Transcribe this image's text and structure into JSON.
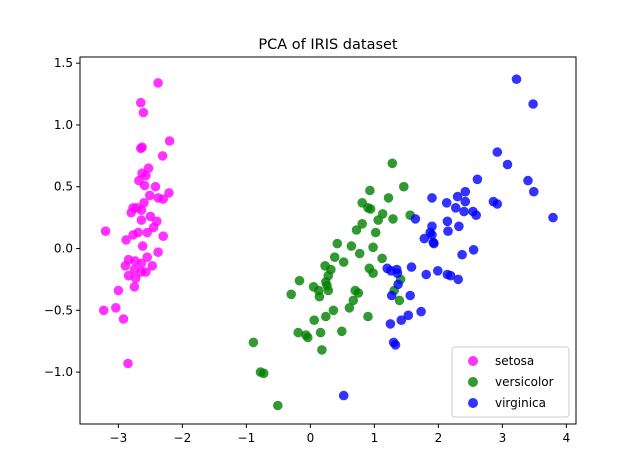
{
  "chart_data": {
    "type": "scatter",
    "title": "PCA of IRIS dataset",
    "xlabel": "",
    "ylabel": "",
    "xlim": [
      -3.6,
      4.15
    ],
    "ylim": [
      -1.42,
      1.55
    ],
    "xticks": [
      -3,
      -2,
      -1,
      0,
      1,
      2,
      3,
      4
    ],
    "xtick_labels": [
      "−3",
      "−2",
      "−1",
      "0",
      "1",
      "2",
      "3",
      "4"
    ],
    "yticks": [
      -1.0,
      -0.5,
      0.0,
      0.5,
      1.0,
      1.5
    ],
    "ytick_labels": [
      "−1.0",
      "−0.5",
      "0.0",
      "0.5",
      "1.0",
      "1.5"
    ],
    "grid": false,
    "legend_position": "lower-right",
    "marker_alpha": 0.8,
    "series": [
      {
        "name": "setosa",
        "color": "#ff00ff",
        "points": [
          [
            -2.38,
            1.34
          ],
          [
            -2.65,
            1.18
          ],
          [
            -2.61,
            1.1
          ],
          [
            -2.2,
            0.87
          ],
          [
            -2.63,
            0.82
          ],
          [
            -2.65,
            0.81
          ],
          [
            -2.31,
            0.75
          ],
          [
            -2.53,
            0.65
          ],
          [
            -2.63,
            0.61
          ],
          [
            -2.57,
            0.59
          ],
          [
            -2.68,
            0.55
          ],
          [
            -2.59,
            0.51
          ],
          [
            -2.42,
            0.5
          ],
          [
            -2.21,
            0.45
          ],
          [
            -2.51,
            0.43
          ],
          [
            -2.38,
            0.41
          ],
          [
            -2.3,
            0.4
          ],
          [
            -2.6,
            0.37
          ],
          [
            -2.77,
            0.33
          ],
          [
            -2.71,
            0.33
          ],
          [
            -2.8,
            0.29
          ],
          [
            -2.64,
            0.31
          ],
          [
            -2.5,
            0.26
          ],
          [
            -2.4,
            0.22
          ],
          [
            -2.64,
            0.23
          ],
          [
            -2.45,
            0.17
          ],
          [
            -2.55,
            0.13
          ],
          [
            -2.69,
            0.13
          ],
          [
            -2.77,
            0.11
          ],
          [
            -2.3,
            0.1
          ],
          [
            -3.2,
            0.14
          ],
          [
            -2.88,
            0.07
          ],
          [
            -2.62,
            0.02
          ],
          [
            -2.38,
            -0.03
          ],
          [
            -2.55,
            -0.07
          ],
          [
            -2.74,
            -0.1
          ],
          [
            -2.84,
            -0.09
          ],
          [
            -2.64,
            -0.12
          ],
          [
            -2.89,
            -0.14
          ],
          [
            -2.47,
            -0.14
          ],
          [
            -2.75,
            -0.17
          ],
          [
            -2.57,
            -0.19
          ],
          [
            -2.64,
            -0.19
          ],
          [
            -2.84,
            -0.22
          ],
          [
            -2.73,
            -0.24
          ],
          [
            -2.75,
            -0.31
          ],
          [
            -3.0,
            -0.34
          ],
          [
            -3.04,
            -0.48
          ],
          [
            -3.23,
            -0.5
          ],
          [
            -2.92,
            -0.57
          ],
          [
            -2.85,
            -0.93
          ]
        ]
      },
      {
        "name": "versicolor",
        "color": "#008000",
        "points": [
          [
            1.28,
            0.69
          ],
          [
            0.93,
            0.47
          ],
          [
            1.46,
            0.5
          ],
          [
            0.81,
            0.37
          ],
          [
            1.22,
            0.41
          ],
          [
            0.9,
            0.33
          ],
          [
            0.94,
            0.32
          ],
          [
            1.13,
            0.28
          ],
          [
            1.06,
            0.23
          ],
          [
            0.81,
            0.2
          ],
          [
            1.29,
            0.24
          ],
          [
            1.56,
            0.27
          ],
          [
            0.72,
            0.15
          ],
          [
            1.02,
            0.13
          ],
          [
            0.64,
            0.02
          ],
          [
            0.42,
            0.04
          ],
          [
            0.98,
            0.01
          ],
          [
            0.77,
            -0.04
          ],
          [
            0.38,
            -0.07
          ],
          [
            0.52,
            -0.11
          ],
          [
            1.12,
            -0.08
          ],
          [
            0.23,
            -0.14
          ],
          [
            0.92,
            -0.16
          ],
          [
            0.32,
            -0.17
          ],
          [
            0.98,
            -0.2
          ],
          [
            0.28,
            -0.22
          ],
          [
            -0.17,
            -0.26
          ],
          [
            1.41,
            -0.25
          ],
          [
            0.24,
            -0.27
          ],
          [
            0.05,
            -0.31
          ],
          [
            0.26,
            -0.3
          ],
          [
            0.28,
            -0.34
          ],
          [
            0.13,
            -0.34
          ],
          [
            0.7,
            -0.34
          ],
          [
            0.75,
            -0.36
          ],
          [
            1.31,
            -0.34
          ],
          [
            0.14,
            -0.39
          ],
          [
            -0.3,
            -0.37
          ],
          [
            0.67,
            -0.42
          ],
          [
            1.39,
            -0.42
          ],
          [
            0.36,
            -0.5
          ],
          [
            0.61,
            -0.48
          ],
          [
            0.24,
            -0.55
          ],
          [
            0.9,
            -0.55
          ],
          [
            0.06,
            -0.58
          ],
          [
            0.49,
            -0.67
          ],
          [
            -0.19,
            -0.68
          ],
          [
            -0.07,
            -0.7
          ],
          [
            0.16,
            -0.68
          ],
          [
            -0.04,
            -0.72
          ],
          [
            -0.89,
            -0.76
          ],
          [
            0.18,
            -0.82
          ],
          [
            -0.78,
            -1.0
          ],
          [
            -0.73,
            -1.01
          ],
          [
            -0.51,
            -1.27
          ]
        ]
      },
      {
        "name": "virginica",
        "color": "#0000ff",
        "points": [
          [
            3.22,
            1.37
          ],
          [
            3.48,
            1.17
          ],
          [
            2.92,
            0.78
          ],
          [
            3.08,
            0.68
          ],
          [
            3.4,
            0.55
          ],
          [
            2.61,
            0.56
          ],
          [
            3.49,
            0.46
          ],
          [
            2.42,
            0.46
          ],
          [
            2.3,
            0.42
          ],
          [
            1.9,
            0.41
          ],
          [
            2.42,
            0.38
          ],
          [
            2.13,
            0.37
          ],
          [
            2.86,
            0.38
          ],
          [
            2.92,
            0.36
          ],
          [
            2.27,
            0.33
          ],
          [
            2.4,
            0.3
          ],
          [
            2.54,
            0.3
          ],
          [
            2.59,
            0.27
          ],
          [
            3.79,
            0.25
          ],
          [
            2.14,
            0.22
          ],
          [
            1.64,
            0.24
          ],
          [
            1.9,
            0.18
          ],
          [
            2.32,
            0.18
          ],
          [
            1.78,
            0.08
          ],
          [
            1.87,
            0.13
          ],
          [
            2.15,
            0.14
          ],
          [
            1.93,
            0.04
          ],
          [
            1.9,
            0.11
          ],
          [
            1.92,
            0.05
          ],
          [
            2.55,
            -0.01
          ],
          [
            2.37,
            -0.05
          ],
          [
            1.58,
            -0.15
          ],
          [
            1.35,
            -0.17
          ],
          [
            1.2,
            -0.16
          ],
          [
            1.26,
            -0.18
          ],
          [
            1.36,
            -0.2
          ],
          [
            1.81,
            -0.21
          ],
          [
            1.99,
            -0.18
          ],
          [
            2.14,
            -0.21
          ],
          [
            2.19,
            -0.22
          ],
          [
            2.31,
            -0.25
          ],
          [
            1.37,
            -0.29
          ],
          [
            1.56,
            -0.38
          ],
          [
            1.27,
            -0.38
          ],
          [
            1.73,
            -0.51
          ],
          [
            1.53,
            -0.54
          ],
          [
            1.25,
            -0.61
          ],
          [
            1.42,
            -0.58
          ],
          [
            1.3,
            -0.76
          ],
          [
            1.33,
            -0.78
          ],
          [
            0.52,
            -1.19
          ]
        ]
      }
    ]
  }
}
